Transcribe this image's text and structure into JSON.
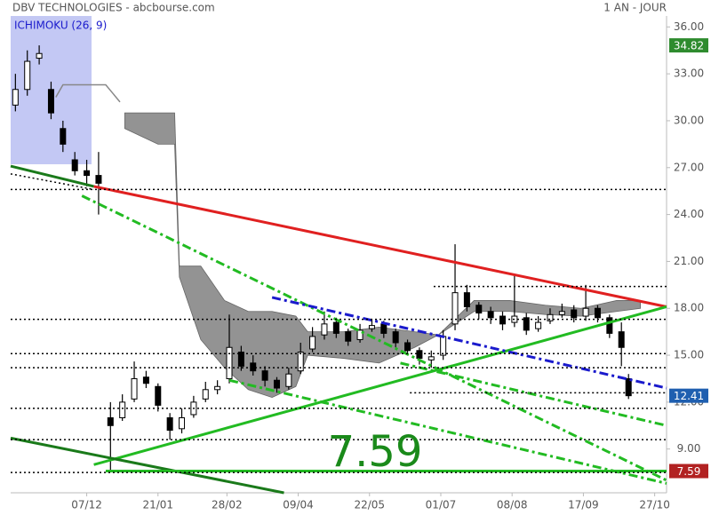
{
  "chart_data": {
    "type": "candlestick",
    "title": "DBV TECHNOLOGIES - abcbourse.com",
    "subtitle": "1 AN - JOUR",
    "indicator_label": "ICHIMOKU (26, 9)",
    "big_label": "7.59",
    "xlim": [
      0,
      276
    ],
    "ylim": [
      6.2,
      36.7
    ],
    "xticks": [
      {
        "value": 32,
        "label": "07/12"
      },
      {
        "value": 62,
        "label": "21/01"
      },
      {
        "value": 91,
        "label": "28/02"
      },
      {
        "value": 121,
        "label": "09/04"
      },
      {
        "value": 151,
        "label": "22/05"
      },
      {
        "value": 181,
        "label": "01/07"
      },
      {
        "value": 211,
        "label": "08/08"
      },
      {
        "value": 241,
        "label": "17/09"
      },
      {
        "value": 271,
        "label": "27/10"
      }
    ],
    "yticks": [
      {
        "value": 9,
        "label": "9.00"
      },
      {
        "value": 12,
        "label": "12.00"
      },
      {
        "value": 15,
        "label": "15.00"
      },
      {
        "value": 18,
        "label": "18.00"
      },
      {
        "value": 21,
        "label": "21.00"
      },
      {
        "value": 24,
        "label": "24.00"
      },
      {
        "value": 27,
        "label": "27.00"
      },
      {
        "value": 30,
        "label": "30.00"
      },
      {
        "value": 33,
        "label": "33.00"
      },
      {
        "value": 36,
        "label": "36.00"
      }
    ],
    "x": [
      2,
      7,
      12,
      17,
      22,
      27,
      32,
      37,
      42,
      47,
      52,
      57,
      62,
      67,
      72,
      77,
      82,
      87,
      92,
      97,
      102,
      107,
      112,
      117,
      122,
      127,
      132,
      137,
      142,
      147,
      152,
      157,
      162,
      167,
      172,
      177,
      182,
      187,
      192,
      197,
      202,
      207,
      212,
      217,
      222,
      227,
      232,
      237,
      242,
      247,
      252,
      257,
      260
    ],
    "open": [
      31,
      32,
      34,
      32,
      29.5,
      27.5,
      26.8,
      26.5,
      11,
      11,
      12.2,
      13.6,
      13,
      11,
      10.3,
      11.2,
      12.2,
      12.8,
      13.5,
      15.2,
      14.5,
      14,
      13.4,
      13,
      14,
      15.4,
      16.3,
      17.1,
      16.5,
      16,
      16.7,
      17,
      16.5,
      15.8,
      15.3,
      14.7,
      15,
      17,
      19,
      18.2,
      17.8,
      17.5,
      17.1,
      17.4,
      16.7,
      17.2,
      17.6,
      17.9,
      17.5,
      18,
      17.4,
      16.5,
      13.5
    ],
    "high": [
      33,
      34.5,
      34.82,
      32.5,
      30,
      28,
      27.5,
      28,
      12,
      12.5,
      14.6,
      14,
      13.2,
      11.3,
      11.6,
      12.4,
      13.3,
      13.4,
      17.6,
      15.6,
      15,
      14.3,
      13.6,
      14.2,
      15.8,
      16.8,
      17.8,
      17.4,
      16.7,
      17,
      17.3,
      17.2,
      16.7,
      16,
      15.5,
      15.3,
      16.6,
      22.1,
      19.5,
      18.4,
      18.1,
      17.8,
      20.1,
      17.7,
      17.5,
      18,
      18.3,
      18.2,
      19.5,
      18.2,
      17.6,
      17.1,
      13.8
    ],
    "low": [
      30.6,
      31.6,
      33.6,
      30.1,
      28,
      26.5,
      25.8,
      24,
      7.59,
      10.8,
      12,
      12.9,
      11.4,
      9.6,
      10,
      11,
      12,
      12.5,
      13.2,
      14,
      13.7,
      13,
      12.6,
      12.8,
      13.8,
      15.2,
      16,
      16.1,
      15.6,
      15.8,
      16.5,
      16.1,
      15.5,
      15,
      14.4,
      14.2,
      14.7,
      16.6,
      17.8,
      17.3,
      17,
      16.6,
      16.8,
      16.3,
      16.5,
      17,
      17.4,
      17.1,
      17.2,
      17.1,
      16.1,
      14.3,
      12.2
    ],
    "close": [
      32,
      33.8,
      34.3,
      30.5,
      28.5,
      26.8,
      26.5,
      26,
      10.5,
      12,
      13.5,
      13.2,
      11.8,
      10.2,
      11,
      12,
      12.8,
      13,
      15.5,
      14.3,
      14,
      13.4,
      12.9,
      13.8,
      15.2,
      16.2,
      17,
      16.4,
      15.9,
      16.6,
      16.9,
      16.4,
      15.8,
      15.3,
      14.8,
      14.9,
      16.2,
      19,
      18.1,
      17.7,
      17.4,
      17,
      17.5,
      16.6,
      17.1,
      17.6,
      17.8,
      17.4,
      18,
      17.4,
      16.4,
      15.5,
      12.41
    ],
    "candle_color": "#000000",
    "cloud": {
      "color": "#888888",
      "x": [
        48,
        62,
        69,
        71,
        80,
        90,
        100,
        110,
        120,
        125,
        140,
        155,
        170,
        180,
        195,
        210,
        225,
        240,
        255,
        265
      ],
      "upper": [
        30.5,
        30.5,
        30.5,
        20.7,
        20.7,
        18.5,
        17.8,
        17.8,
        17.5,
        16.5,
        16.5,
        16.8,
        16.5,
        16.3,
        18.5,
        18.5,
        18.2,
        18,
        18.5,
        18.5
      ],
      "lower": [
        29.5,
        28.5,
        28.5,
        20,
        16,
        14.2,
        12.8,
        12.3,
        13,
        15,
        14.8,
        14.5,
        15.5,
        16.3,
        17.8,
        17.8,
        17.6,
        17.5,
        17.8,
        18
      ]
    },
    "lines": [
      {
        "color": "#1a7a1a",
        "dash": "solid",
        "width": 3,
        "x": [
          0,
          35
        ],
        "y": [
          27.1,
          25.8
        ]
      },
      {
        "color": "#000000",
        "dash": "dot",
        "width": 1.5,
        "x": [
          0,
          35
        ],
        "y": [
          26.6,
          25.6
        ]
      },
      {
        "color": "#e02020",
        "dash": "solid",
        "width": 3,
        "x": [
          35,
          276
        ],
        "y": [
          25.8,
          18.1
        ]
      },
      {
        "color": "#22bb22",
        "dash": "solid",
        "width": 3,
        "x": [
          35,
          276
        ],
        "y": [
          8,
          18.1
        ]
      },
      {
        "color": "#1a7a1a",
        "dash": "solid",
        "width": 3,
        "x": [
          0,
          115
        ],
        "y": [
          9.7,
          6.2
        ]
      },
      {
        "color": "#22bb22",
        "dash": "dashdot",
        "width": 3,
        "x": [
          30,
          276
        ],
        "y": [
          25.2,
          7
        ]
      },
      {
        "color": "#22bb22",
        "dash": "dashdot",
        "width": 3,
        "x": [
          164,
          276
        ],
        "y": [
          14.5,
          10.5
        ]
      },
      {
        "color": "#22bb22",
        "dash": "dashdot",
        "width": 3,
        "x": [
          92,
          276
        ],
        "y": [
          13.4,
          6.8
        ]
      },
      {
        "color": "#1a1acc",
        "dash": "dashdot",
        "width": 3,
        "x": [
          110,
          276
        ],
        "y": [
          18.7,
          12.9
        ]
      },
      {
        "color": "#22bb22",
        "dash": "solid",
        "width": 3,
        "x": [
          40,
          276
        ],
        "y": [
          7.59,
          7.59
        ]
      },
      {
        "color": "#888888",
        "dash": "solid",
        "width": 1.5,
        "x": [
          19,
          22,
          40,
          46
        ],
        "y": [
          31.5,
          32.3,
          32.3,
          31.2
        ]
      },
      {
        "color": "#000000",
        "dash": "dot",
        "width": 1.5,
        "x": [
          0,
          276
        ],
        "y": [
          25.6,
          25.6
        ]
      },
      {
        "color": "#000000",
        "dash": "dot",
        "width": 1.5,
        "x": [
          178,
          276
        ],
        "y": [
          19.4,
          19.4
        ]
      },
      {
        "color": "#000000",
        "dash": "dot",
        "width": 1.5,
        "x": [
          0,
          276
        ],
        "y": [
          17.3,
          17.3
        ]
      },
      {
        "color": "#000000",
        "dash": "dot",
        "width": 1.5,
        "x": [
          0,
          276
        ],
        "y": [
          15.1,
          15.1
        ]
      },
      {
        "color": "#000000",
        "dash": "dot",
        "width": 1.5,
        "x": [
          0,
          276
        ],
        "y": [
          14.2,
          14.2
        ]
      },
      {
        "color": "#000000",
        "dash": "dot",
        "width": 1.5,
        "x": [
          168,
          276
        ],
        "y": [
          12.6,
          12.6
        ]
      },
      {
        "color": "#000000",
        "dash": "dot",
        "width": 1.5,
        "x": [
          0,
          276
        ],
        "y": [
          11.6,
          11.6
        ]
      },
      {
        "color": "#000000",
        "dash": "dot",
        "width": 1.5,
        "x": [
          0,
          276
        ],
        "y": [
          9.6,
          9.6
        ]
      },
      {
        "color": "#000000",
        "dash": "dot",
        "width": 1.5,
        "x": [
          0,
          276
        ],
        "y": [
          7.5,
          7.5
        ]
      }
    ],
    "price_tags": [
      {
        "value": 34.82,
        "color": "#2e8b2e"
      },
      {
        "value": 12.41,
        "color": "#1f5fb0"
      },
      {
        "value": 7.59,
        "color": "#b22222"
      }
    ]
  }
}
